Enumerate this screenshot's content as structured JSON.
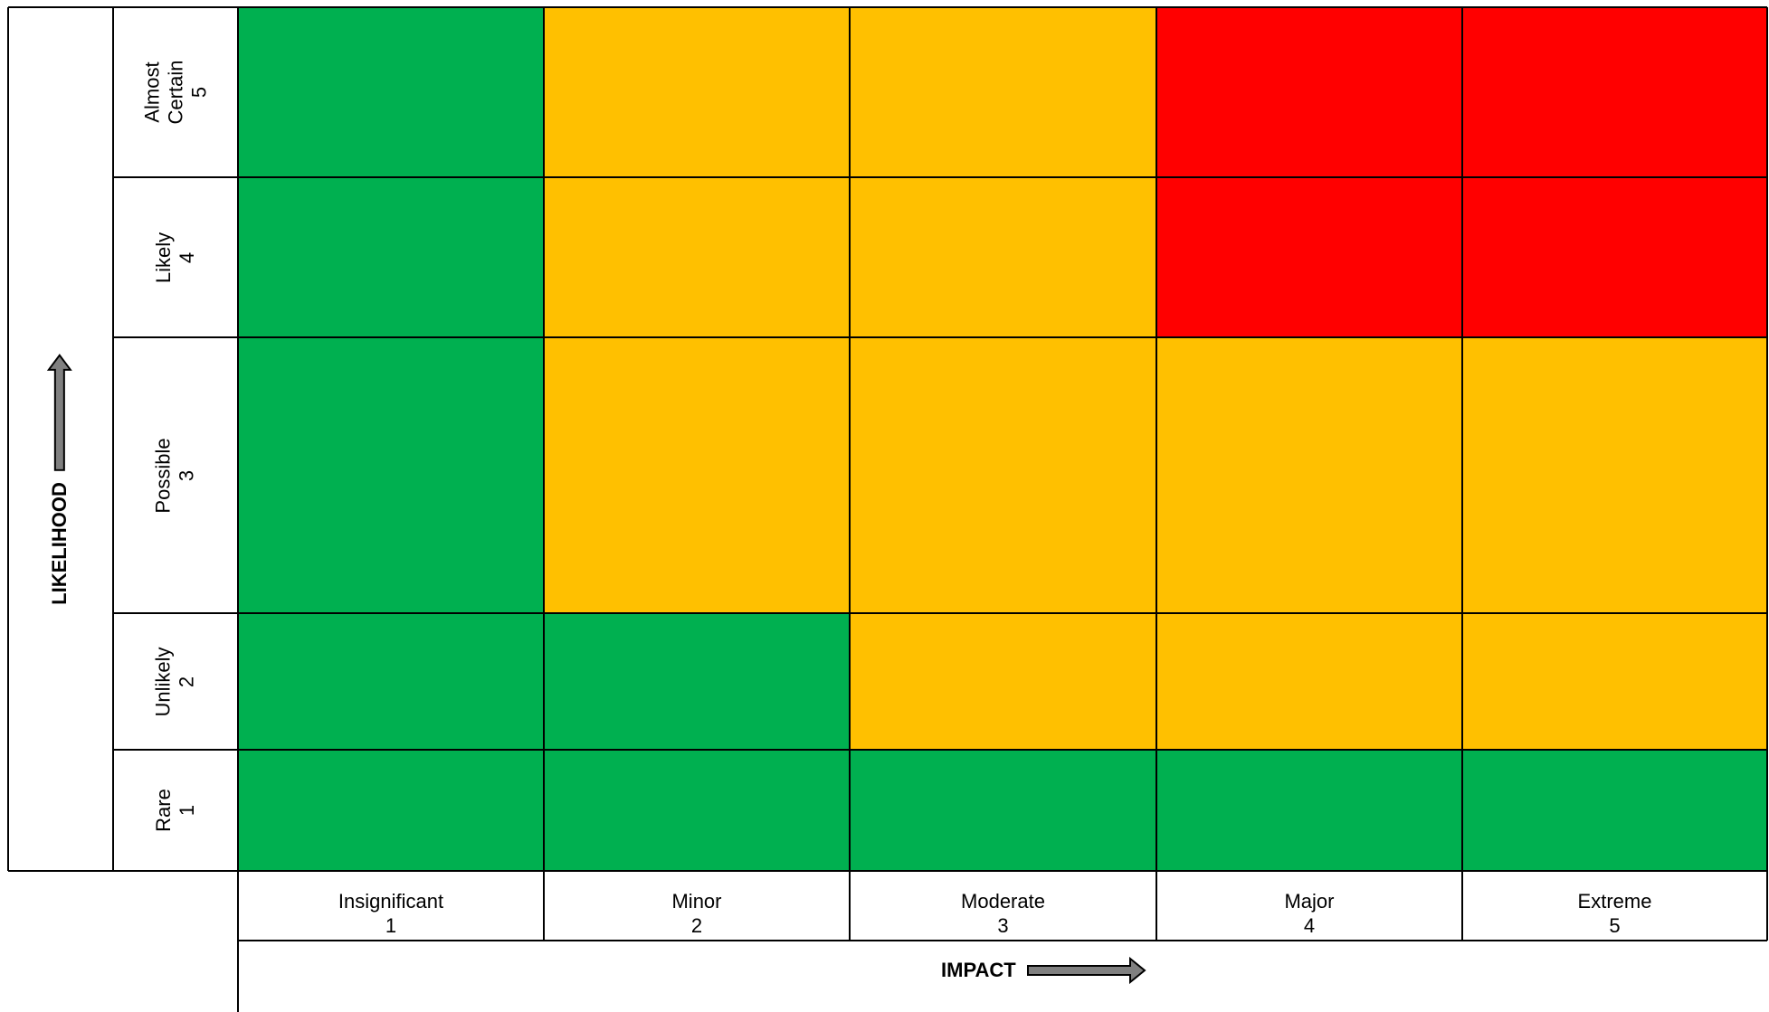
{
  "axes": {
    "likelihood_label": "LIKELIHOOD",
    "impact_label": "IMPACT"
  },
  "colors": {
    "green": "#00B050",
    "amber": "#FFC000",
    "red": "#FF0000",
    "arrow_fill": "#808080",
    "line": "#000000"
  },
  "likelihood_rows": [
    {
      "name": "Almost Certain",
      "name_lines": [
        "Almost",
        "Certain"
      ],
      "level": "5"
    },
    {
      "name": "Likely",
      "name_lines": [
        "Likely"
      ],
      "level": "4"
    },
    {
      "name": "Possible",
      "name_lines": [
        "Possible"
      ],
      "level": "3"
    },
    {
      "name": "Unlikely",
      "name_lines": [
        "Unlikely"
      ],
      "level": "2"
    },
    {
      "name": "Rare",
      "name_lines": [
        "Rare"
      ],
      "level": "1"
    }
  ],
  "impact_columns": [
    {
      "name": "Insignificant",
      "level": "1"
    },
    {
      "name": "Minor",
      "level": "2"
    },
    {
      "name": "Moderate",
      "level": "3"
    },
    {
      "name": "Major",
      "level": "4"
    },
    {
      "name": "Extreme",
      "level": "5"
    }
  ],
  "risk_matrix": [
    [
      "green",
      "amber",
      "amber",
      "red",
      "red"
    ],
    [
      "green",
      "amber",
      "amber",
      "red",
      "red"
    ],
    [
      "green",
      "amber",
      "amber",
      "amber",
      "amber"
    ],
    [
      "green",
      "green",
      "amber",
      "amber",
      "amber"
    ],
    [
      "green",
      "green",
      "green",
      "green",
      "green"
    ]
  ]
}
